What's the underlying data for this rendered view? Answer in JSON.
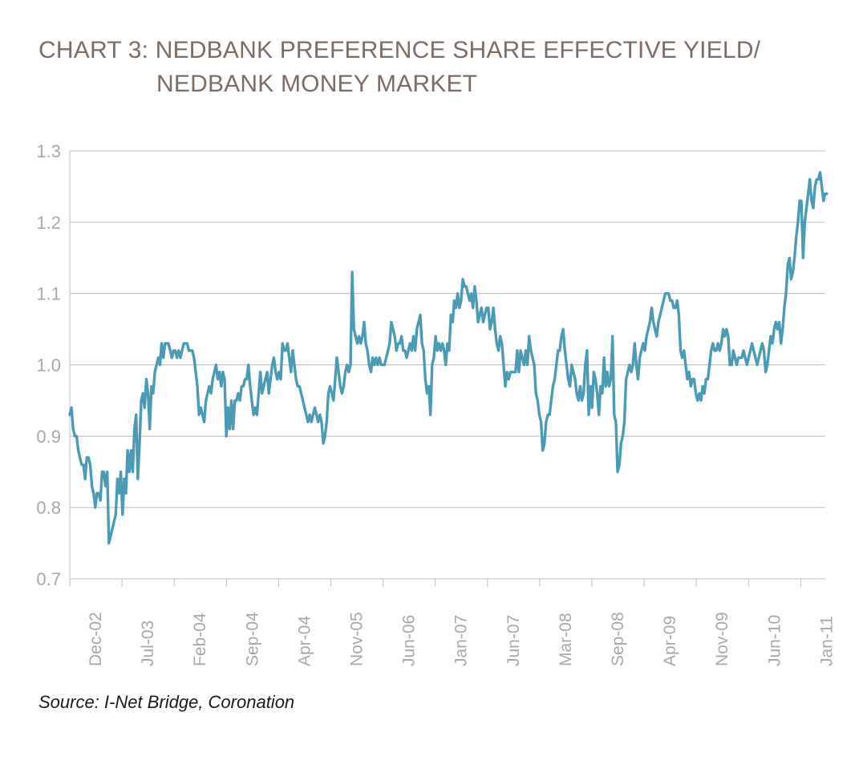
{
  "title_line1": "CHART 3: NEDBANK PREFERENCE SHARE EFFECTIVE YIELD/",
  "title_line2": "NEDBANK MONEY MARKET",
  "source": "Source: I-Net Bridge, Coronation",
  "colors": {
    "line": "#4a9cb6",
    "grid": "#bdbdbd",
    "tick_text": "#a8a8a8",
    "title": "#7d6c63"
  },
  "chart_data": {
    "type": "line",
    "title": "CHART 3: NEDBANK PREFERENCE SHARE EFFECTIVE YIELD/ NEDBANK MONEY MARKET",
    "xlabel": "",
    "ylabel": "",
    "ylim": [
      0.7,
      1.3
    ],
    "yticks": [
      0.7,
      0.8,
      0.9,
      1.0,
      1.1,
      1.2,
      1.3
    ],
    "ytick_labels": [
      "0.7",
      "0.8",
      "0.9",
      "1.0",
      "1.1",
      "1.2",
      "1.3"
    ],
    "xticks": [
      "Dec-02",
      "Jul-03",
      "Feb-04",
      "Sep-04",
      "Apr-04",
      "Nov-05",
      "Jun-06",
      "Jan-07",
      "Jun-07",
      "Mar-08",
      "Sep-08",
      "Apr-09",
      "Nov-09",
      "Jun-10",
      "Jan-11"
    ],
    "grid": "horizontal",
    "legend": "none",
    "series": [
      {
        "x_start": 0,
        "x_end": 14.5,
        "values": [
          0.93,
          0.94,
          0.91,
          0.9,
          0.9,
          0.88,
          0.87,
          0.86,
          0.86,
          0.84,
          0.87,
          0.87,
          0.86,
          0.83,
          0.82,
          0.8,
          0.82,
          0.82,
          0.81,
          0.85,
          0.85,
          0.83,
          0.85,
          0.75,
          0.76,
          0.77,
          0.78,
          0.79,
          0.84,
          0.82,
          0.85,
          0.79,
          0.84,
          0.82,
          0.88,
          0.85,
          0.88,
          0.85,
          0.91,
          0.93,
          0.84,
          0.89,
          0.95,
          0.96,
          0.94,
          0.98,
          0.96,
          0.91,
          0.97,
          0.96,
          0.99,
          1.0,
          1.01,
          1.0,
          1.03,
          1.01,
          1.03,
          1.03,
          1.03,
          1.02,
          1.01,
          1.02,
          1.02,
          1.01,
          1.02,
          1.01,
          1.02,
          1.03,
          1.03,
          1.03,
          1.02,
          1.02,
          1.02,
          1.01,
          0.99,
          0.97,
          0.93,
          0.94,
          0.93,
          0.92,
          0.95,
          0.96,
          0.97,
          0.96,
          0.98,
          0.99,
          1.0,
          0.98,
          0.99,
          0.97,
          0.99,
          0.98,
          0.9,
          0.94,
          0.91,
          0.95,
          0.91,
          0.95,
          0.95,
          0.96,
          0.95,
          0.97,
          0.97,
          0.98,
          0.98,
          1.0,
          0.97,
          0.95,
          0.93,
          0.94,
          0.93,
          0.96,
          0.99,
          0.96,
          0.97,
          0.98,
          0.99,
          0.96,
          0.98,
          1.0,
          1.01,
          0.99,
          0.98,
          0.99,
          0.98,
          1.03,
          1.02,
          1.02,
          1.03,
          1.01,
          0.99,
          1.02,
          1.0,
          0.98,
          0.97,
          0.97,
          0.96,
          0.95,
          0.94,
          0.93,
          0.92,
          0.93,
          0.92,
          0.93,
          0.94,
          0.93,
          0.92,
          0.93,
          0.92,
          0.89,
          0.9,
          0.92,
          0.96,
          0.97,
          0.96,
          0.95,
          0.98,
          1.01,
          0.99,
          0.97,
          0.96,
          0.97,
          0.99,
          1.0,
          0.99,
          1.0,
          1.13,
          1.05,
          1.04,
          1.03,
          1.04,
          1.03,
          1.04,
          1.06,
          1.03,
          1.02,
          1.0,
          0.99,
          1.01,
          1.0,
          1.01,
          1.0,
          1.01,
          1.0,
          1.0,
          1.0,
          1.01,
          1.02,
          1.03,
          1.06,
          1.05,
          1.04,
          1.02,
          1.03,
          1.03,
          1.04,
          1.02,
          1.02,
          1.01,
          1.02,
          1.03,
          1.02,
          1.04,
          1.02,
          1.05,
          1.06,
          1.07,
          1.03,
          1.02,
          0.98,
          0.96,
          0.97,
          0.93,
          1.0,
          1.01,
          1.04,
          1.02,
          1.03,
          1.02,
          1.03,
          1.02,
          1.0,
          1.03,
          1.02,
          1.07,
          1.06,
          1.09,
          1.08,
          1.1,
          1.08,
          1.09,
          1.12,
          1.11,
          1.11,
          1.1,
          1.09,
          1.1,
          1.08,
          1.11,
          1.09,
          1.06,
          1.07,
          1.08,
          1.06,
          1.07,
          1.08,
          1.08,
          1.05,
          1.06,
          1.08,
          1.05,
          1.03,
          1.02,
          1.04,
          1.03,
          1.0,
          0.97,
          0.99,
          0.98,
          0.99,
          0.99,
          0.99,
          0.99,
          1.02,
          0.99,
          1.02,
          1.01,
          1.0,
          1.02,
          1.0,
          1.04,
          1.02,
          1.01,
          1.0,
          0.96,
          0.95,
          0.93,
          0.92,
          0.88,
          0.89,
          0.92,
          0.93,
          0.93,
          0.95,
          0.97,
          0.98,
          1.0,
          1.02,
          1.02,
          1.04,
          1.05,
          1.02,
          1.0,
          0.98,
          0.97,
          1.0,
          0.99,
          0.98,
          0.96,
          0.95,
          0.97,
          0.95,
          0.96,
          1.0,
          1.02,
          0.93,
          0.97,
          0.94,
          0.99,
          0.98,
          0.96,
          0.93,
          0.97,
          0.96,
          1.01,
          0.97,
          0.99,
          0.97,
          0.98,
          1.04,
          0.93,
          0.92,
          0.85,
          0.86,
          0.89,
          0.9,
          0.92,
          0.98,
          0.99,
          1.0,
          0.99,
          1.0,
          1.03,
          1.0,
          0.98,
          1.01,
          1.02,
          1.03,
          1.02,
          1.04,
          1.05,
          1.06,
          1.08,
          1.06,
          1.05,
          1.04,
          1.06,
          1.07,
          1.08,
          1.09,
          1.1,
          1.1,
          1.1,
          1.09,
          1.09,
          1.08,
          1.08,
          1.09,
          1.07,
          1.02,
          1.01,
          1.02,
          1.0,
          0.98,
          0.99,
          0.97,
          0.98,
          0.98,
          0.96,
          0.95,
          0.96,
          0.95,
          0.97,
          0.96,
          0.98,
          0.98,
          1.0,
          1.02,
          1.03,
          1.02,
          1.02,
          1.03,
          1.02,
          1.03,
          1.05,
          1.04,
          1.05,
          1.04,
          1.0,
          1.0,
          1.02,
          1.01,
          1.0,
          1.01,
          1.01,
          1.01,
          1.02,
          1.01,
          1.0,
          1.01,
          1.02,
          1.03,
          1.02,
          1.01,
          1.0,
          1.01,
          1.02,
          1.03,
          1.02,
          0.99,
          1.0,
          1.02,
          1.04,
          1.03,
          1.05,
          1.06,
          1.05,
          1.06,
          1.03,
          1.05,
          1.08,
          1.1,
          1.14,
          1.15,
          1.12,
          1.13,
          1.15,
          1.18,
          1.2,
          1.23,
          1.23,
          1.15,
          1.2,
          1.22,
          1.24,
          1.26,
          1.23,
          1.22,
          1.25,
          1.26,
          1.26,
          1.27,
          1.25,
          1.23,
          1.24,
          1.24
        ]
      }
    ]
  }
}
